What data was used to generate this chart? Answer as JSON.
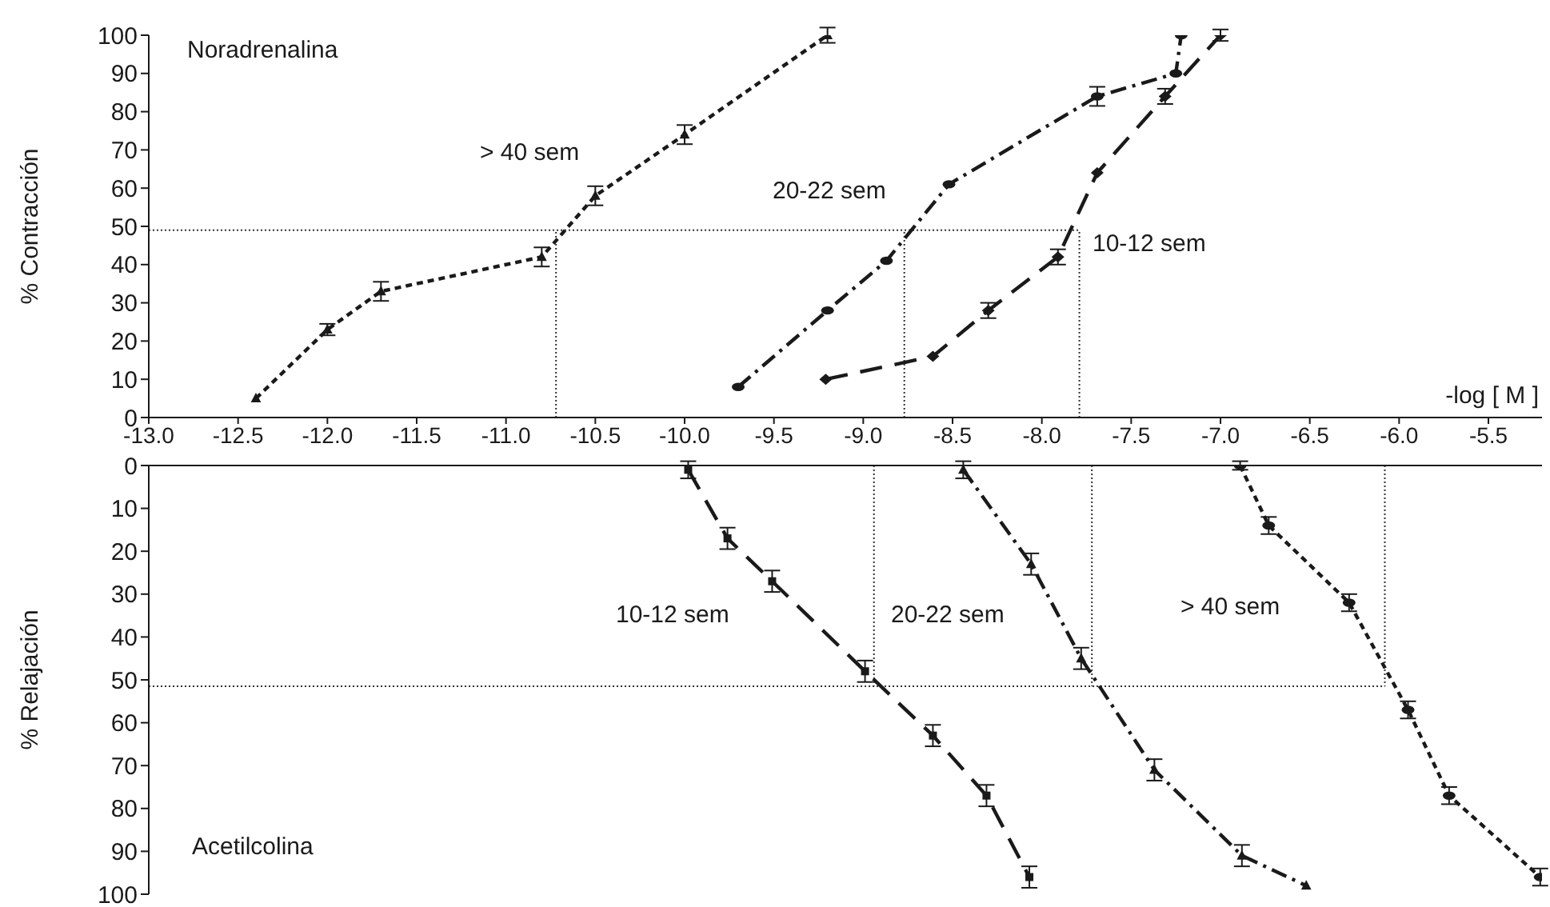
{
  "chart_data": [
    {
      "type": "line",
      "title": "Noradrenalina",
      "ylabel": "% Contracción",
      "xlabel": "-log [ M ]",
      "xlim": [
        -13.0,
        -5.2
      ],
      "xticks": [
        {
          "value": -13,
          "label": "-13.0"
        },
        -12.5,
        {
          "value": -12,
          "label": "-12.0"
        },
        -11.5,
        {
          "value": -11,
          "label": "-11.0"
        },
        -10.5,
        {
          "value": -10,
          "label": "-10.0"
        },
        -9.5,
        {
          "value": -9,
          "label": "-9.0"
        },
        -8.5,
        {
          "value": -8,
          "label": "-8.0"
        },
        -7.5,
        {
          "value": -7,
          "label": "-7.0"
        },
        -6.5,
        {
          "value": -6,
          "label": "-6.0"
        },
        -5.5
      ],
      "ylim": [
        0,
        100
      ],
      "yticks": [
        0,
        10,
        20,
        30,
        40,
        50,
        60,
        70,
        80,
        90,
        100
      ],
      "ref_lines": [
        {
          "axis": "y",
          "value": 49,
          "line_style": "dotted"
        },
        {
          "axis": "x",
          "value": -10.72,
          "line_style": "dotted"
        },
        {
          "axis": "x",
          "value": -8.77,
          "line_style": "dotted"
        },
        {
          "axis": "x",
          "value": -7.79,
          "line_style": "dotted"
        }
      ],
      "series": [
        {
          "name": "> 40 sem",
          "color": "#1a1a1a",
          "line_style": "dotted",
          "marker": "triangle",
          "x": [
            -12.4,
            -12.0,
            -11.7,
            -10.8,
            -10.5,
            -10.0,
            -9.2
          ],
          "values": [
            5,
            23,
            33,
            42,
            58,
            74,
            100
          ],
          "errors": [
            null,
            1.5,
            2.5,
            2.5,
            2.5,
            2.5,
            2
          ]
        },
        {
          "name": "20-22 sem",
          "color": "#1a1a1a",
          "line_style": "dashdot",
          "marker": "circle",
          "x": [
            -9.7,
            -9.2,
            -8.87,
            -8.52,
            -7.69,
            -7.25,
            -7.22
          ],
          "values": [
            8,
            28,
            41,
            61,
            84,
            90,
            100
          ],
          "errors": [
            null,
            null,
            null,
            null,
            2.5,
            null,
            null
          ]
        },
        {
          "name": "10-12 sem",
          "color": "#1a1a1a",
          "line_style": "dashed",
          "marker": "diamond",
          "x": [
            -9.21,
            -8.61,
            -8.3,
            -7.91,
            -7.69,
            -7.31,
            -7.0
          ],
          "values": [
            10,
            16,
            28,
            42,
            64,
            84,
            100
          ],
          "errors": [
            null,
            null,
            2,
            2,
            null,
            2,
            1.5
          ]
        }
      ]
    },
    {
      "type": "line",
      "title": "Acetilcolina",
      "ylabel": "% Relajación",
      "xlim": [
        -13.0,
        -5.2
      ],
      "ylim": [
        100,
        0
      ],
      "yticks": [
        0,
        10,
        20,
        30,
        40,
        50,
        60,
        70,
        80,
        90,
        100
      ],
      "tick_labels": "y",
      "ref_lines": [
        {
          "axis": "y",
          "value": 51.5,
          "line_style": "dotted"
        },
        {
          "axis": "x",
          "value": -8.94,
          "line_style": "dotted"
        },
        {
          "axis": "x",
          "value": -7.72,
          "line_style": "dotted"
        },
        {
          "axis": "x",
          "value": -6.08,
          "line_style": "dotted"
        }
      ],
      "series": [
        {
          "name": "10-12 sem",
          "color": "#1a1a1a",
          "line_style": "dashed",
          "marker": "square",
          "x": [
            -9.98,
            -9.76,
            -9.51,
            -8.99,
            -8.61,
            -8.31,
            -8.07
          ],
          "values": [
            1,
            17,
            27,
            48,
            63,
            77,
            96
          ],
          "errors": [
            2,
            2.5,
            2.5,
            2.5,
            2.5,
            2.5,
            2.5
          ]
        },
        {
          "name": "20-22 sem",
          "color": "#1a1a1a",
          "line_style": "dashdot",
          "marker": "triangle",
          "x": [
            -8.44,
            -8.06,
            -7.78,
            -7.37,
            -6.88,
            -6.52
          ],
          "values": [
            1,
            23,
            45,
            71,
            91,
            98
          ],
          "errors": [
            2,
            2.5,
            2.5,
            2.5,
            2.5,
            null
          ]
        },
        {
          "name": "> 40 sem",
          "color": "#1a1a1a",
          "line_style": "dotted",
          "marker": "circle",
          "x": [
            -6.89,
            -6.73,
            -6.28,
            -5.95,
            -5.72,
            -5.21
          ],
          "values": [
            0,
            14,
            32,
            57,
            77,
            96
          ],
          "errors": [
            1,
            2,
            2,
            2,
            2,
            2
          ]
        }
      ]
    }
  ]
}
